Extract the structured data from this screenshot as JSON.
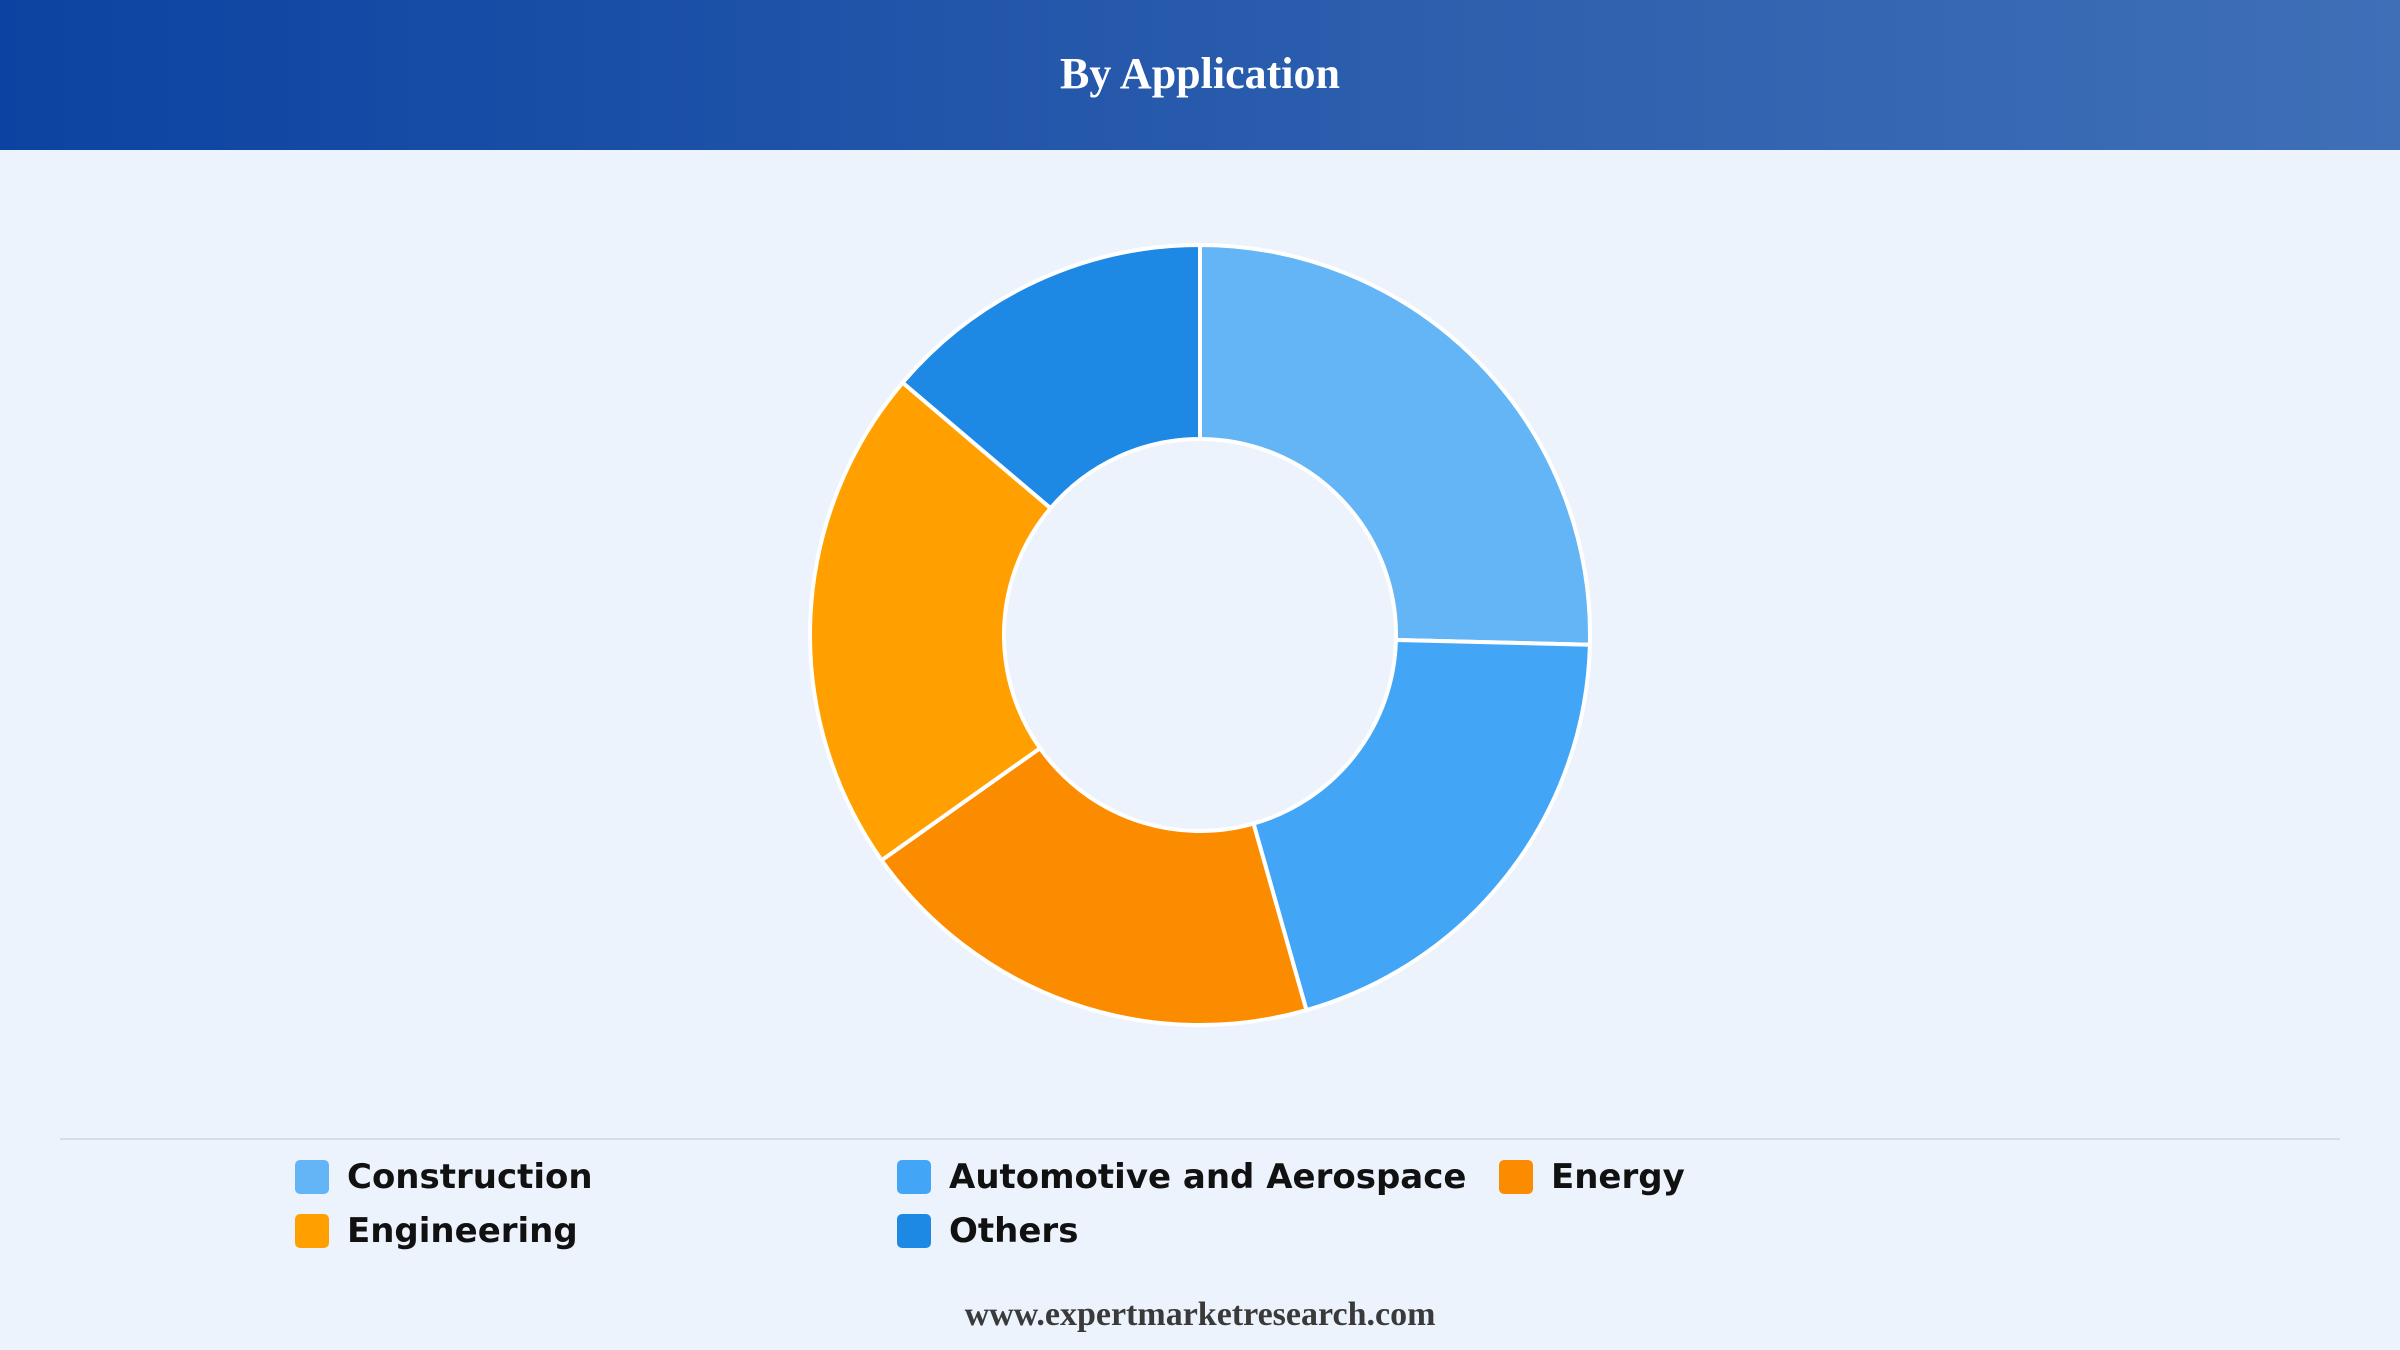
{
  "header": {
    "title": "By Application"
  },
  "footer": {
    "source": "www.expertmarketresearch.com"
  },
  "colors": {
    "header_start": "#0c43a2",
    "header_end": "#3e6fb7",
    "background": "#ecf3fc",
    "slice_border": "#ffffff"
  },
  "chart_data": {
    "type": "pie",
    "variant": "donut",
    "title": "By Application",
    "legend_position": "bottom",
    "categories": [
      "Construction",
      "Automotive and Aerospace",
      "Energy",
      "Engineering",
      "Others"
    ],
    "values": [
      25.4,
      20.2,
      19.6,
      21.0,
      13.8
    ],
    "unit": "%",
    "colors": [
      "#64b5f6",
      "#42a5f5",
      "#fb8c00",
      "#ffa000",
      "#1e88e5"
    ]
  }
}
